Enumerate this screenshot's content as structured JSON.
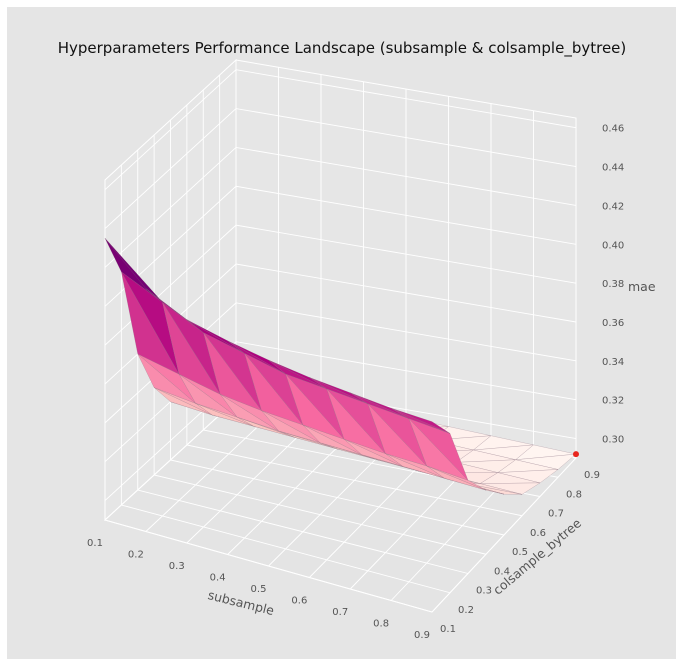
{
  "chart_data": {
    "type": "surface3d",
    "title": "Hyperparameters Performance Landscape (subsample & colsample_bytree)",
    "x_axis": {
      "label": "subsample",
      "ticks": [
        "0.1",
        "0.2",
        "0.3",
        "0.4",
        "0.5",
        "0.6",
        "0.7",
        "0.8",
        "0.9"
      ],
      "range": [
        0.1,
        0.9
      ]
    },
    "y_axis": {
      "label": "colsample_bytree",
      "ticks": [
        "0.1",
        "0.2",
        "0.3",
        "0.4",
        "0.5",
        "0.6",
        "0.7",
        "0.8",
        "0.9"
      ],
      "range": [
        0.1,
        0.9
      ]
    },
    "z_axis": {
      "label": "mae",
      "ticks": [
        "0.30",
        "0.32",
        "0.34",
        "0.36",
        "0.38",
        "0.40",
        "0.42",
        "0.44",
        "0.46"
      ],
      "range": [
        0.29,
        0.465
      ]
    },
    "colormap": "RdPu",
    "background": "#e5e5e5",
    "grid": true,
    "subsample": [
      0.1,
      0.2,
      0.3,
      0.4,
      0.5,
      0.6,
      0.7,
      0.8,
      0.9
    ],
    "colsample_bytree": [
      0.1,
      0.2,
      0.3,
      0.4,
      0.5,
      0.6,
      0.7,
      0.8,
      0.9
    ],
    "mae": [
      [
        0.435,
        0.41,
        0.36,
        0.335,
        0.32,
        0.31,
        0.305,
        0.302,
        0.3
      ],
      [
        0.415,
        0.4,
        0.355,
        0.332,
        0.318,
        0.308,
        0.304,
        0.301,
        0.299
      ],
      [
        0.405,
        0.39,
        0.35,
        0.33,
        0.317,
        0.307,
        0.303,
        0.3,
        0.298
      ],
      [
        0.4,
        0.385,
        0.347,
        0.328,
        0.316,
        0.306,
        0.302,
        0.299,
        0.297
      ],
      [
        0.396,
        0.38,
        0.345,
        0.327,
        0.315,
        0.305,
        0.301,
        0.298,
        0.296
      ],
      [
        0.393,
        0.378,
        0.343,
        0.326,
        0.314,
        0.304,
        0.3,
        0.297,
        0.295
      ],
      [
        0.391,
        0.376,
        0.341,
        0.325,
        0.313,
        0.303,
        0.299,
        0.296,
        0.294
      ],
      [
        0.389,
        0.374,
        0.34,
        0.324,
        0.312,
        0.302,
        0.298,
        0.295,
        0.293
      ],
      [
        0.388,
        0.372,
        0.338,
        0.323,
        0.311,
        0.301,
        0.297,
        0.294,
        0.292
      ]
    ],
    "best_point": {
      "subsample": 0.9,
      "colsample_bytree": 0.9,
      "mae": 0.292,
      "color": "#e8251d"
    }
  }
}
